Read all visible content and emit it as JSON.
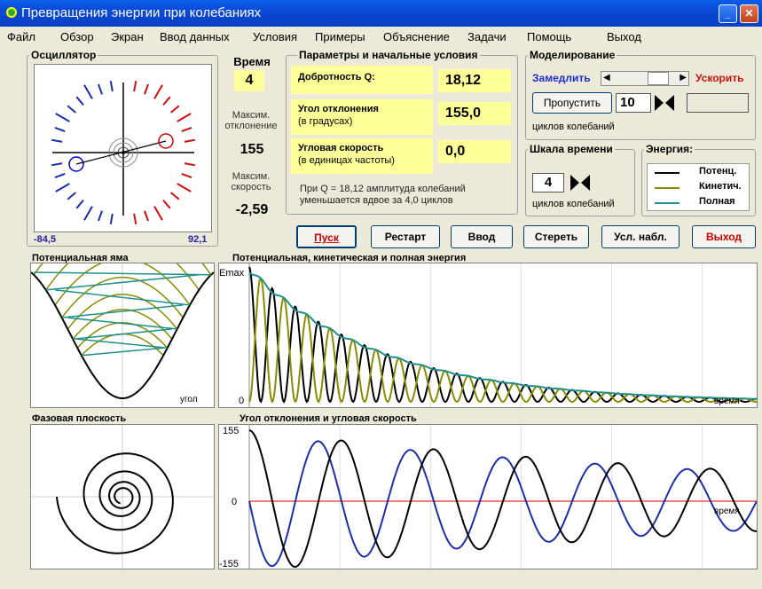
{
  "window": {
    "title": "Превращения энергии при колебаниях"
  },
  "menu": [
    "Файл",
    "Обзор",
    "Экран",
    "Ввод данных",
    "Условия",
    "Примеры",
    "Объяснение",
    "Задачи",
    "Помощь",
    "Выход"
  ],
  "oscillator": {
    "title": "Осциллятор",
    "min_label": "-84,5",
    "max_label": "92,1"
  },
  "time": {
    "title": "Время",
    "value": "4",
    "max_deflection_label": "Максим. отклонение",
    "max_deflection_value": "155",
    "max_speed_label": "Максим. скорость",
    "max_speed_value": "-2,59"
  },
  "params": {
    "title": "Параметры и начальные условия",
    "q_label": "Добротность Q:",
    "q_value": "18,12",
    "angle_label": "Угол отклонения",
    "angle_sub": "(в градусах)",
    "angle_value": "155,0",
    "speed_label": "Угловая скорость",
    "speed_sub": "(в единицах частоты)",
    "speed_value": "0,0",
    "note_line1": "При Q = 18,12 амплитуда колебаний",
    "note_line2": "уменьшается вдвое за 4,0 циклов"
  },
  "modeling": {
    "title": "Моделирование",
    "slow_label": "Замедлить",
    "fast_label": "Ускорить",
    "skip_button": "Пропустить",
    "skip_value": "10",
    "cycles_label": "циклов колебаний"
  },
  "timescale": {
    "title": "Шкала времени",
    "value": "4",
    "cycles_label": "циклов колебаний"
  },
  "energy_legend": {
    "title": "Энергия:",
    "items": [
      "Потенц.",
      "Кинетич.",
      "Полная"
    ],
    "colors": [
      "#000000",
      "#8b8b00",
      "#1f8f8f"
    ]
  },
  "buttons": {
    "start": "Пуск",
    "restart": "Рестарт",
    "enter": "Ввод",
    "erase": "Стереть",
    "cond": "Усл. набл.",
    "exit": "Выход"
  },
  "potential_well": {
    "title": "Потенциальная яма",
    "xlabel": "угол"
  },
  "energy_plot": {
    "title": "Потенциальная, кинетическая и полная энергия",
    "ymax_label": "Emax",
    "yzero_label": "0",
    "xlabel": "время"
  },
  "phase_plane": {
    "title": "Фазовая плоскость"
  },
  "angle_plot": {
    "title": "Угол отклонения и угловая скорость",
    "y_top": "155",
    "y_zero": "0",
    "y_bottom": "-155",
    "xlabel": "время"
  },
  "chart_data": [
    {
      "type": "line",
      "name": "energy",
      "Q": 18.12,
      "cycles": 11,
      "ylim": [
        0,
        1
      ]
    },
    {
      "type": "line",
      "name": "angle",
      "Q": 18.12,
      "cycles": 5.5,
      "ylim": [
        -155,
        155
      ]
    }
  ]
}
